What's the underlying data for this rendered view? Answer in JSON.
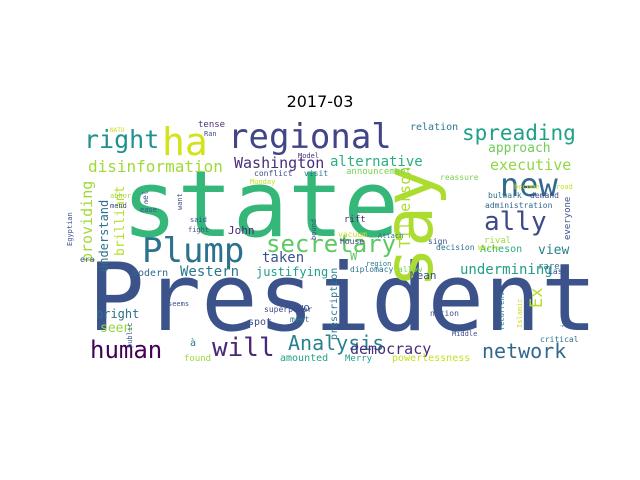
{
  "title": "2017-03",
  "words": [
    {
      "text": "President",
      "color": "#3b528b"
    },
    {
      "text": "state",
      "color": "#35b779"
    },
    {
      "text": "say",
      "color": "#addc30"
    },
    {
      "text": "regional",
      "color": "#414487"
    },
    {
      "text": "Plump",
      "color": "#2c728e"
    },
    {
      "text": "ha",
      "color": "#d2e21b"
    },
    {
      "text": "new",
      "color": "#31688e"
    },
    {
      "text": "right",
      "color": "#21918c"
    },
    {
      "text": "secretary",
      "color": "#5ec962"
    },
    {
      "text": "ally",
      "color": "#3e4989"
    },
    {
      "text": "spreading",
      "color": "#1fa187"
    },
    {
      "text": "human",
      "color": "#440154"
    },
    {
      "text": "will",
      "color": "#482878"
    },
    {
      "text": "network",
      "color": "#31688e"
    },
    {
      "text": "Analysis",
      "color": "#26828e"
    },
    {
      "text": "disinformation",
      "color": "#a0da39"
    },
    {
      "text": "Washington",
      "color": "#472d7b"
    },
    {
      "text": "alternative",
      "color": "#29af7f"
    },
    {
      "text": "executive",
      "color": "#90d743"
    },
    {
      "text": "approach",
      "color": "#6ece58"
    },
    {
      "text": "Tillerson",
      "color": "#addc30"
    },
    {
      "text": "providing",
      "color": "#a0da39"
    },
    {
      "text": "understand",
      "color": "#2c728e"
    },
    {
      "text": "brilliant",
      "color": "#b5de2b"
    },
    {
      "text": "democracy",
      "color": "#472d7b"
    },
    {
      "text": "undermining",
      "color": "#1f9e89"
    },
    {
      "text": "Ex",
      "color": "#b5de2b"
    },
    {
      "text": "view",
      "color": "#26828e"
    },
    {
      "text": "taken",
      "color": "#3b528b"
    },
    {
      "text": "Western",
      "color": "#2a788e"
    },
    {
      "text": "justifying",
      "color": "#1f9e89"
    },
    {
      "text": "seen",
      "color": "#8fd744"
    },
    {
      "text": "bright",
      "color": "#2c728e"
    },
    {
      "text": "John",
      "color": "#482878"
    },
    {
      "text": "two",
      "color": "#3b528b"
    },
    {
      "text": "Mean",
      "color": "#3b528b"
    },
    {
      "text": "Acheson",
      "color": "#29af7f"
    },
    {
      "text": "prescription",
      "color": "#2a788e"
    },
    {
      "text": "modern",
      "color": "#31688e"
    },
    {
      "text": "amounted",
      "color": "#1fa187"
    },
    {
      "text": "Merry",
      "color": "#1f9e89"
    },
    {
      "text": "powerlessness",
      "color": "#c8e020"
    },
    {
      "text": "found",
      "color": "#a0da39"
    },
    {
      "text": "spot",
      "color": "#3e4989"
    },
    {
      "text": "rival",
      "color": "#a0da39"
    },
    {
      "text": "rare",
      "color": "#2a788e"
    },
    {
      "text": "everyone",
      "color": "#3b528b"
    },
    {
      "text": "W",
      "color": "#5ec962"
    },
    {
      "text": "relation",
      "color": "#2a788e"
    },
    {
      "text": "tense",
      "color": "#472d7b"
    },
    {
      "text": "announcement",
      "color": "#7ad151"
    },
    {
      "text": "reassure",
      "color": "#7ad151"
    },
    {
      "text": "administration",
      "color": "#31688e"
    },
    {
      "text": "rift",
      "color": "#482878"
    },
    {
      "text": "vacuum",
      "color": "#c8e020"
    },
    {
      "text": "House",
      "color": "#3e4989"
    },
    {
      "text": "Model",
      "color": "#472d7b"
    },
    {
      "text": "conflict",
      "color": "#3e4989"
    },
    {
      "text": "visit",
      "color": "#2a788e"
    },
    {
      "text": "diplomacy",
      "color": "#2c728e"
    },
    {
      "text": "allow",
      "color": "#7ad151"
    },
    {
      "text": "nation",
      "color": "#3b528b"
    },
    {
      "text": "Middle",
      "color": "#3b528b"
    },
    {
      "text": "critical",
      "color": "#2c728e"
    },
    {
      "text": "Last",
      "color": "#3b528b"
    },
    {
      "text": "superpower",
      "color": "#3e4989"
    },
    {
      "text": "meet",
      "color": "#2a788e"
    },
    {
      "text": "decision",
      "color": "#2c728e"
    },
    {
      "text": "White",
      "color": "#c8e020"
    },
    {
      "text": "bulwark",
      "color": "#2c728e"
    },
    {
      "text": "demand",
      "color": "#3e4989"
    },
    {
      "text": "become",
      "color": "#c8e020"
    },
    {
      "text": "road",
      "color": "#c8e020"
    },
    {
      "text": "sign",
      "color": "#3b528b"
    },
    {
      "text": "era",
      "color": "#3b528b"
    },
    {
      "text": "mend",
      "color": "#3b528b"
    },
    {
      "text": "abhor",
      "color": "#a0da39"
    },
    {
      "text": "NATO",
      "color": "#c8e020"
    },
    {
      "text": "Ran",
      "color": "#3b528b"
    },
    {
      "text": "Egyptian",
      "color": "#3b528b"
    },
    {
      "text": "ease",
      "color": "#3b528b"
    },
    {
      "text": "want",
      "color": "#3b528b"
    },
    {
      "text": "fight",
      "color": "#3b528b"
    },
    {
      "text": "said",
      "color": "#3b528b"
    },
    {
      "text": "Monday",
      "color": "#c8e020"
    },
    {
      "text": "seems",
      "color": "#3b528b"
    },
    {
      "text": "public",
      "color": "#3b528b"
    },
    {
      "text": "Islamic",
      "color": "#c8e020"
    },
    {
      "text": "intended",
      "color": "#3b528b"
    },
    {
      "text": "recurrent",
      "color": "#2a788e"
    },
    {
      "text": "region",
      "color": "#2a788e"
    },
    {
      "text": "Attach",
      "color": "#2a788e"
    },
    {
      "text": "bound",
      "color": "#3b528b"
    },
    {
      "text": "à",
      "color": "#2a788e"
    },
    {
      "text": "el",
      "color": "#3b528b"
    },
    {
      "text": "e",
      "color": "#3b528b"
    }
  ]
}
